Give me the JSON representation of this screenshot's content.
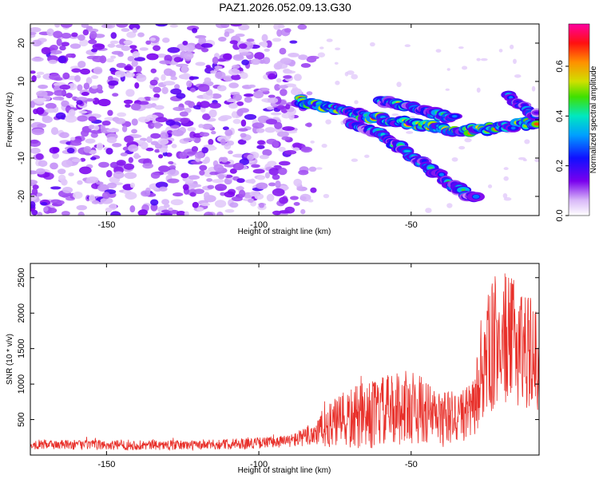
{
  "title": "PAZ1.2026.052.09.13.G30",
  "colors": {
    "snr_line": "#e8302a",
    "spectrogram_low": "#e0c8f8",
    "spectrogram_mid": "#6a00e8",
    "axis": "#000000"
  },
  "chart_data": [
    {
      "type": "heatmap",
      "name": "spectrogram",
      "xlabel": "Height of straight line (km)",
      "ylabel": "Frequency (Hz)",
      "xlim": [
        -175,
        -8
      ],
      "ylim": [
        -25,
        25
      ],
      "xticks": [
        -150,
        -100,
        -50
      ],
      "xtick_labels": [
        "-150",
        "-100",
        "-50"
      ],
      "yticks": [
        -20,
        -10,
        0,
        10,
        20
      ],
      "ytick_labels": [
        "-20",
        "-10",
        "0",
        "10",
        "20"
      ],
      "noise_region_x": [
        -175,
        -85
      ],
      "ridges": [
        {
          "name": "main-ridge",
          "points": [
            [
              -87,
              5
            ],
            [
              -75,
              3
            ],
            [
              -65,
              1
            ],
            [
              -50,
              -1
            ],
            [
              -35,
              -3
            ],
            [
              -20,
              -2
            ],
            [
              -8,
              -0.5
            ]
          ],
          "peak_amplitude": 0.75
        },
        {
          "name": "lower-ridge",
          "points": [
            [
              -70,
              -1
            ],
            [
              -60,
              -4
            ],
            [
              -52,
              -8
            ],
            [
              -45,
              -12
            ],
            [
              -35,
              -18
            ],
            [
              -28,
              -21
            ]
          ],
          "peak_amplitude": 0.5
        },
        {
          "name": "upper-ridge",
          "points": [
            [
              -60,
              5
            ],
            [
              -48,
              3
            ],
            [
              -35,
              0
            ]
          ],
          "peak_amplitude": 0.55
        },
        {
          "name": "right-branch",
          "points": [
            [
              -18,
              6
            ],
            [
              -12,
              3
            ],
            [
              -8,
              1
            ]
          ],
          "peak_amplitude": 0.45
        }
      ],
      "colorbar": {
        "label": "Normalized spectral amplitude",
        "range": [
          0,
          0.77
        ],
        "ticks": [
          0,
          0.2,
          0.4,
          0.6
        ],
        "tick_labels": [
          "0.0",
          "0.2",
          "0.4",
          "0.6"
        ]
      }
    },
    {
      "type": "line",
      "name": "snr",
      "xlabel": "Height of straight line (km)",
      "ylabel": "SNR (10 * v/v)",
      "xlim": [
        -175,
        -8
      ],
      "ylim": [
        0,
        2700
      ],
      "xticks": [
        -150,
        -100,
        -50
      ],
      "xtick_labels": [
        "-150",
        "-100",
        "-50"
      ],
      "yticks": [
        500,
        1000,
        1500,
        2000,
        2500
      ],
      "ytick_labels": [
        "500",
        "1000",
        "1500",
        "2000",
        "2500"
      ],
      "envelope": {
        "x": [
          -175,
          -150,
          -120,
          -100,
          -90,
          -85,
          -80,
          -75,
          -70,
          -65,
          -60,
          -55,
          -50,
          -45,
          -40,
          -35,
          -30,
          -27,
          -25,
          -22,
          -20,
          -18,
          -15,
          -12,
          -10,
          -8
        ],
        "mean": [
          150,
          140,
          140,
          170,
          200,
          250,
          350,
          450,
          500,
          550,
          600,
          650,
          700,
          600,
          500,
          550,
          600,
          1100,
          1400,
          1600,
          1700,
          1600,
          1600,
          1500,
          1400,
          1300
        ],
        "spread": [
          70,
          70,
          70,
          80,
          90,
          130,
          250,
          350,
          450,
          480,
          500,
          520,
          550,
          450,
          400,
          380,
          400,
          700,
          850,
          1000,
          1000,
          900,
          900,
          850,
          750,
          700
        ]
      }
    }
  ]
}
